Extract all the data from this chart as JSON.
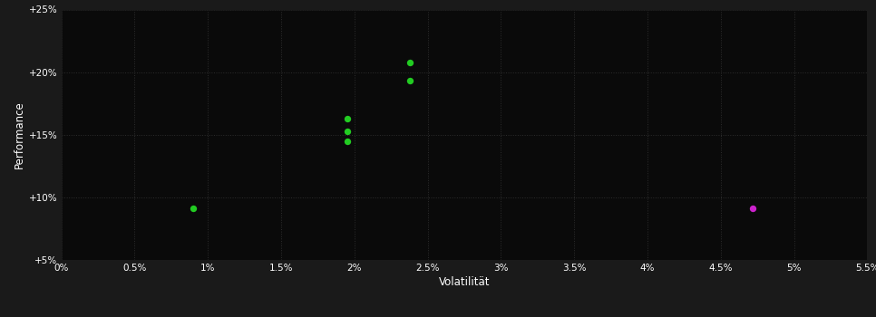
{
  "background_color": "#1a1a1a",
  "plot_bg_color": "#0a0a0a",
  "grid_color": "#2d2d2d",
  "text_color": "#ffffff",
  "xlabel": "Volatilität",
  "ylabel": "Performance",
  "xlim": [
    0.0,
    0.055
  ],
  "ylim": [
    0.05,
    0.25
  ],
  "xticks": [
    0.0,
    0.005,
    0.01,
    0.015,
    0.02,
    0.025,
    0.03,
    0.035,
    0.04,
    0.045,
    0.05,
    0.055
  ],
  "yticks": [
    0.05,
    0.1,
    0.15,
    0.2,
    0.25
  ],
  "xtick_labels": [
    "0%",
    "0.5%",
    "1%",
    "1.5%",
    "2%",
    "2.5%",
    "3%",
    "3.5%",
    "4%",
    "4.5%",
    "5%",
    "5.5%"
  ],
  "ytick_labels": [
    "+5%",
    "+10%",
    "+15%",
    "+20%",
    "+25%"
  ],
  "green_points": [
    [
      0.009,
      0.091
    ],
    [
      0.0195,
      0.163
    ],
    [
      0.0195,
      0.153
    ],
    [
      0.0195,
      0.145
    ],
    [
      0.0238,
      0.208
    ],
    [
      0.0238,
      0.193
    ]
  ],
  "magenta_points": [
    [
      0.0472,
      0.091
    ]
  ],
  "green_color": "#22cc22",
  "magenta_color": "#cc22cc",
  "marker_size": 28,
  "figsize": [
    9.66,
    3.5
  ],
  "dpi": 100,
  "tick_fontsize": 7.5,
  "label_fontsize": 8.5
}
